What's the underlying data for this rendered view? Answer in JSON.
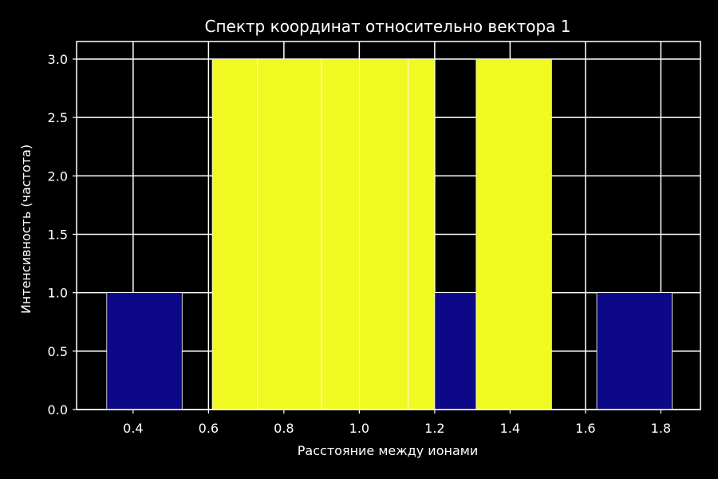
{
  "chart_data": {
    "type": "bar",
    "title": "Спектр координат относительно вектора 1",
    "xlabel": "Расстояние между ионами",
    "ylabel": "Интенсивность (частота)",
    "xlim": [
      0.25,
      1.905
    ],
    "ylim": [
      0,
      3.15
    ],
    "xticks": [
      "0.4",
      "0.6",
      "0.8",
      "1.0",
      "1.2",
      "1.4",
      "1.6",
      "1.8"
    ],
    "yticks": [
      "0.0",
      "0.5",
      "1.0",
      "1.5",
      "2.0",
      "2.5",
      "3.0"
    ],
    "grid": true,
    "legend": "none",
    "colors": {
      "background": "#000000",
      "grid": "#ffffff",
      "high": "#f1f922",
      "low": "#0c0887",
      "edge": "#ffffff",
      "text": "#ffffff"
    },
    "bars": [
      {
        "x0": 0.33,
        "x1": 0.53,
        "value": 1,
        "color": "#0c0887"
      },
      {
        "x0": 0.61,
        "x1": 0.73,
        "value": 3,
        "color": "#f1f922"
      },
      {
        "x0": 0.73,
        "x1": 0.9,
        "value": 3,
        "color": "#f1f922"
      },
      {
        "x0": 0.9,
        "x1": 1.0,
        "value": 3,
        "color": "#f1f922"
      },
      {
        "x0": 1.0,
        "x1": 1.13,
        "value": 3,
        "color": "#f1f922"
      },
      {
        "x0": 1.13,
        "x1": 1.2,
        "value": 3,
        "color": "#f1f922"
      },
      {
        "x0": 1.2,
        "x1": 1.31,
        "value": 1,
        "color": "#0c0887"
      },
      {
        "x0": 1.31,
        "x1": 1.51,
        "value": 3,
        "color": "#f1f922"
      },
      {
        "x0": 1.63,
        "x1": 1.83,
        "value": 1,
        "color": "#0c0887"
      }
    ]
  }
}
